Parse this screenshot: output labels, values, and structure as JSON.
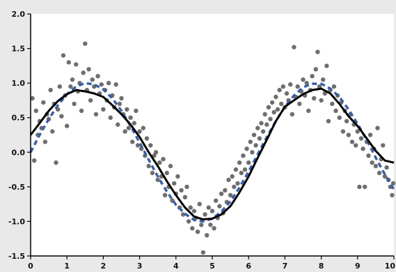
{
  "chart_data": {
    "type": "scatter",
    "title": "",
    "xlabel": "",
    "ylabel": "",
    "xlim": [
      0,
      10
    ],
    "ylim": [
      -1.5,
      2.0
    ],
    "grid": false,
    "legend": "none",
    "x_ticks": [
      "0",
      "1",
      "2",
      "3",
      "4",
      "5",
      "6",
      "7",
      "8",
      "9",
      "10"
    ],
    "y_ticks": [
      "2.0",
      "1.5",
      "1.0",
      "0.5",
      "0.0",
      "-0.5",
      "-1.0",
      "-1.5"
    ],
    "x_tick_values": [
      0,
      1,
      2,
      3,
      4,
      5,
      6,
      7,
      8,
      9,
      10
    ],
    "y_tick_values": [
      2.0,
      1.5,
      1.0,
      0.5,
      0.0,
      -0.5,
      -1.0,
      -1.5
    ],
    "colors": {
      "points": "#555555",
      "fit_line": "#000000",
      "true_curve": "#3a5fa8",
      "plot_background": "#ffffff",
      "page_background": "#e9e9e9"
    },
    "series": [
      {
        "kind": "scatter",
        "points": [
          [
            0.05,
            0.78
          ],
          [
            0.1,
            -0.12
          ],
          [
            0.15,
            0.6
          ],
          [
            0.2,
            0.25
          ],
          [
            0.25,
            0.45
          ],
          [
            0.3,
            0.35
          ],
          [
            0.35,
            0.72
          ],
          [
            0.4,
            0.15
          ],
          [
            0.45,
            0.55
          ],
          [
            0.5,
            0.48
          ],
          [
            0.55,
            0.9
          ],
          [
            0.6,
            0.3
          ],
          [
            0.65,
            0.7
          ],
          [
            0.7,
            -0.15
          ],
          [
            0.75,
            0.62
          ],
          [
            0.8,
            0.95
          ],
          [
            0.85,
            0.52
          ],
          [
            0.9,
            1.4
          ],
          [
            0.95,
            0.82
          ],
          [
            1.0,
            0.38
          ],
          [
            1.05,
            1.3
          ],
          [
            1.1,
            0.95
          ],
          [
            1.15,
            1.05
          ],
          [
            1.2,
            0.7
          ],
          [
            1.25,
            1.27
          ],
          [
            1.3,
            0.88
          ],
          [
            1.35,
            1.0
          ],
          [
            1.4,
            0.6
          ],
          [
            1.45,
            1.15
          ],
          [
            1.5,
            1.57
          ],
          [
            1.55,
            0.9
          ],
          [
            1.6,
            1.2
          ],
          [
            1.65,
            0.75
          ],
          [
            1.7,
            1.05
          ],
          [
            1.75,
            0.95
          ],
          [
            1.8,
            0.55
          ],
          [
            1.85,
            1.1
          ],
          [
            1.9,
            0.85
          ],
          [
            1.95,
            0.98
          ],
          [
            2.0,
            0.62
          ],
          [
            2.05,
            0.9
          ],
          [
            2.1,
            0.75
          ],
          [
            2.15,
            1.0
          ],
          [
            2.2,
            0.5
          ],
          [
            2.25,
            0.82
          ],
          [
            2.3,
            0.65
          ],
          [
            2.35,
            0.98
          ],
          [
            2.4,
            0.4
          ],
          [
            2.45,
            0.7
          ],
          [
            2.5,
            0.78
          ],
          [
            2.55,
            0.55
          ],
          [
            2.6,
            0.3
          ],
          [
            2.65,
            0.62
          ],
          [
            2.7,
            0.35
          ],
          [
            2.75,
            0.5
          ],
          [
            2.8,
            0.15
          ],
          [
            2.85,
            0.42
          ],
          [
            2.9,
            0.6
          ],
          [
            2.95,
            0.1
          ],
          [
            3.0,
            0.3
          ],
          [
            3.05,
            0.05
          ],
          [
            3.1,
            0.35
          ],
          [
            3.15,
            -0.05
          ],
          [
            3.2,
            0.2
          ],
          [
            3.25,
            -0.2
          ],
          [
            3.3,
            0.1
          ],
          [
            3.35,
            -0.3
          ],
          [
            3.4,
            -0.05
          ],
          [
            3.45,
            0.0
          ],
          [
            3.5,
            -0.4
          ],
          [
            3.55,
            -0.15
          ],
          [
            3.6,
            -0.35
          ],
          [
            3.65,
            -0.1
          ],
          [
            3.7,
            -0.62
          ],
          [
            3.75,
            -0.3
          ],
          [
            3.8,
            -0.5
          ],
          [
            3.85,
            -0.2
          ],
          [
            3.9,
            -0.7
          ],
          [
            3.95,
            -0.45
          ],
          [
            4.0,
            -0.6
          ],
          [
            4.05,
            -0.35
          ],
          [
            4.1,
            -0.8
          ],
          [
            4.15,
            -0.55
          ],
          [
            4.2,
            -0.9
          ],
          [
            4.25,
            -0.65
          ],
          [
            4.3,
            -0.5
          ],
          [
            4.35,
            -1.0
          ],
          [
            4.4,
            -0.8
          ],
          [
            4.45,
            -1.1
          ],
          [
            4.5,
            -0.85
          ],
          [
            4.55,
            -0.95
          ],
          [
            4.6,
            -1.15
          ],
          [
            4.65,
            -0.75
          ],
          [
            4.7,
            -1.05
          ],
          [
            4.75,
            -1.45
          ],
          [
            4.8,
            -0.9
          ],
          [
            4.85,
            -1.2
          ],
          [
            4.9,
            -0.8
          ],
          [
            4.95,
            -1.05
          ],
          [
            5.0,
            -0.85
          ],
          [
            5.05,
            -1.1
          ],
          [
            5.1,
            -0.7
          ],
          [
            5.15,
            -0.95
          ],
          [
            5.2,
            -0.78
          ],
          [
            5.25,
            -0.6
          ],
          [
            5.3,
            -0.88
          ],
          [
            5.35,
            -0.55
          ],
          [
            5.4,
            -0.72
          ],
          [
            5.45,
            -0.4
          ],
          [
            5.5,
            -0.62
          ],
          [
            5.55,
            -0.35
          ],
          [
            5.6,
            -0.5
          ],
          [
            5.65,
            -0.25
          ],
          [
            5.7,
            -0.45
          ],
          [
            5.75,
            -0.15
          ],
          [
            5.8,
            -0.3
          ],
          [
            5.85,
            -0.05
          ],
          [
            5.9,
            -0.25
          ],
          [
            5.95,
            0.05
          ],
          [
            6.0,
            -0.15
          ],
          [
            6.05,
            0.15
          ],
          [
            6.1,
            0.0
          ],
          [
            6.15,
            0.25
          ],
          [
            6.2,
            0.1
          ],
          [
            6.25,
            0.35
          ],
          [
            6.3,
            0.2
          ],
          [
            6.35,
            0.42
          ],
          [
            6.4,
            0.3
          ],
          [
            6.45,
            0.55
          ],
          [
            6.5,
            0.4
          ],
          [
            6.55,
            0.65
          ],
          [
            6.6,
            0.48
          ],
          [
            6.65,
            0.72
          ],
          [
            6.7,
            0.58
          ],
          [
            6.75,
            0.8
          ],
          [
            6.8,
            0.62
          ],
          [
            6.85,
            0.9
          ],
          [
            6.9,
            0.7
          ],
          [
            6.95,
            0.95
          ],
          [
            7.0,
            0.65
          ],
          [
            7.05,
            0.85
          ],
          [
            7.1,
            0.75
          ],
          [
            7.15,
            0.98
          ],
          [
            7.2,
            0.55
          ],
          [
            7.25,
            1.52
          ],
          [
            7.3,
            0.8
          ],
          [
            7.35,
            0.95
          ],
          [
            7.4,
            0.7
          ],
          [
            7.45,
            0.88
          ],
          [
            7.5,
            1.05
          ],
          [
            7.55,
            0.82
          ],
          [
            7.6,
            1.0
          ],
          [
            7.65,
            0.6
          ],
          [
            7.7,
            0.9
          ],
          [
            7.75,
            1.1
          ],
          [
            7.8,
            0.78
          ],
          [
            7.85,
            1.2
          ],
          [
            7.9,
            1.45
          ],
          [
            7.95,
            0.95
          ],
          [
            8.0,
            0.75
          ],
          [
            8.05,
            1.05
          ],
          [
            8.1,
            0.85
          ],
          [
            8.15,
            1.25
          ],
          [
            8.2,
            0.45
          ],
          [
            8.25,
            0.9
          ],
          [
            8.3,
            0.7
          ],
          [
            8.35,
            0.95
          ],
          [
            8.4,
            0.6
          ],
          [
            8.45,
            0.82
          ],
          [
            8.5,
            0.5
          ],
          [
            8.55,
            0.72
          ],
          [
            8.6,
            0.3
          ],
          [
            8.65,
            0.6
          ],
          [
            8.7,
            0.45
          ],
          [
            8.75,
            0.25
          ],
          [
            8.8,
            0.55
          ],
          [
            8.85,
            0.15
          ],
          [
            8.9,
            0.4
          ],
          [
            8.95,
            0.1
          ],
          [
            9.0,
            0.3
          ],
          [
            9.05,
            -0.5
          ],
          [
            9.1,
            0.2
          ],
          [
            9.15,
            0.05
          ],
          [
            9.2,
            -0.5
          ],
          [
            9.25,
            0.15
          ],
          [
            9.3,
            -0.05
          ],
          [
            9.35,
            0.25
          ],
          [
            9.4,
            -0.15
          ],
          [
            9.45,
            0.05
          ],
          [
            9.5,
            -0.2
          ],
          [
            9.55,
            0.35
          ],
          [
            9.6,
            -0.3
          ],
          [
            9.65,
            -0.1
          ],
          [
            9.7,
            0.1
          ],
          [
            9.75,
            -0.35
          ],
          [
            9.8,
            -0.22
          ],
          [
            9.85,
            -0.4
          ],
          [
            9.9,
            -0.5
          ],
          [
            9.95,
            -0.62
          ],
          [
            9.98,
            -0.45
          ]
        ]
      },
      {
        "kind": "fit_line",
        "x": [
          0,
          0.25,
          0.5,
          0.75,
          1.0,
          1.25,
          1.5,
          1.75,
          2.0,
          2.25,
          2.5,
          2.75,
          3.0,
          3.25,
          3.5,
          3.75,
          4.0,
          4.25,
          4.5,
          4.75,
          5.0,
          5.25,
          5.5,
          5.75,
          6.0,
          6.25,
          6.5,
          6.75,
          7.0,
          7.25,
          7.5,
          7.75,
          8.0,
          8.25,
          8.5,
          8.75,
          9.0,
          9.25,
          9.5,
          9.75,
          10.0
        ],
        "y": [
          0.25,
          0.42,
          0.6,
          0.74,
          0.84,
          0.9,
          0.88,
          0.85,
          0.8,
          0.68,
          0.55,
          0.4,
          0.22,
          0.0,
          -0.2,
          -0.42,
          -0.62,
          -0.8,
          -0.93,
          -0.97,
          -0.96,
          -0.9,
          -0.78,
          -0.58,
          -0.35,
          -0.08,
          0.18,
          0.45,
          0.66,
          0.75,
          0.84,
          0.9,
          0.92,
          0.85,
          0.7,
          0.52,
          0.38,
          0.2,
          0.02,
          -0.12,
          -0.15
        ]
      },
      {
        "kind": "true_curve",
        "x": [
          0,
          0.25,
          0.5,
          0.75,
          1.0,
          1.25,
          1.5,
          1.75,
          2.0,
          2.25,
          2.5,
          2.75,
          3.0,
          3.25,
          3.5,
          3.75,
          4.0,
          4.25,
          4.5,
          4.75,
          5.0,
          5.25,
          5.5,
          5.75,
          6.0,
          6.25,
          6.5,
          6.75,
          7.0,
          7.25,
          7.5,
          7.75,
          8.0,
          8.25,
          8.5,
          8.75,
          9.0,
          9.25,
          9.5,
          9.75,
          10.0
        ],
        "y": [
          0.0,
          0.25,
          0.48,
          0.68,
          0.84,
          0.95,
          1.0,
          0.98,
          0.91,
          0.78,
          0.6,
          0.38,
          0.14,
          -0.11,
          -0.35,
          -0.57,
          -0.76,
          -0.89,
          -0.98,
          -1.0,
          -0.96,
          -0.86,
          -0.71,
          -0.51,
          -0.28,
          -0.03,
          0.22,
          0.45,
          0.66,
          0.82,
          0.94,
          0.99,
          0.99,
          0.92,
          0.8,
          0.62,
          0.41,
          0.18,
          -0.08,
          -0.32,
          -0.54
        ]
      }
    ]
  }
}
